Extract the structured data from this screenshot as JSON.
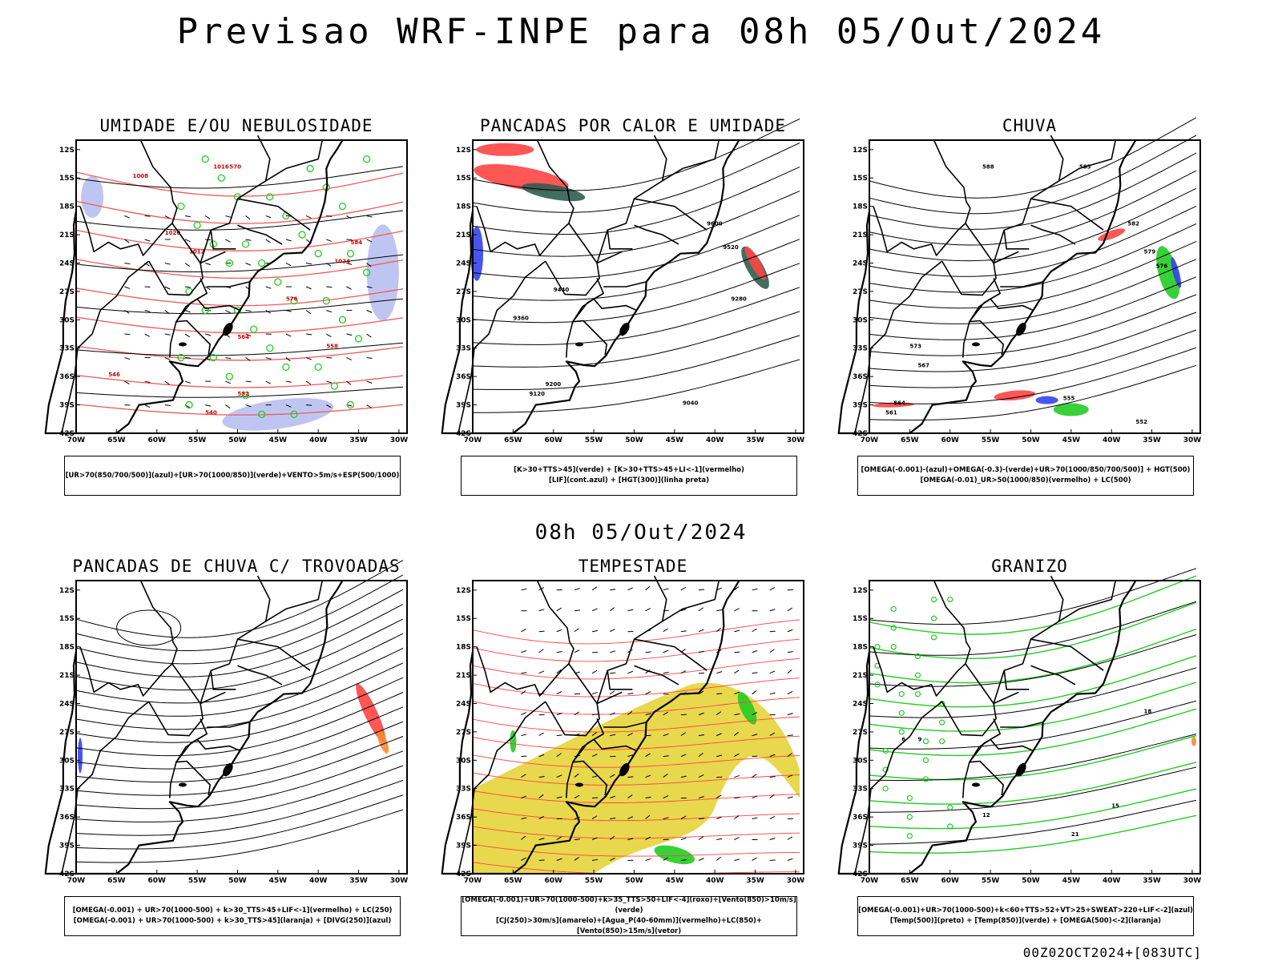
{
  "header": {
    "title": "Previsao WRF-INPE  para 08h 05/Out/2024"
  },
  "mid_header": {
    "subtitle": "08h 05/Out/2024"
  },
  "footer": {
    "run_id": "00Z02OCT2024+[083UTC]"
  },
  "axes": {
    "lat_labels": [
      "12S",
      "15S",
      "18S",
      "21S",
      "24S",
      "27S",
      "30S",
      "33S",
      "36S",
      "39S",
      "42S"
    ],
    "lon_labels": [
      "70W",
      "65W",
      "60W",
      "55W",
      "50W",
      "45W",
      "40W",
      "35W",
      "30W"
    ]
  },
  "colors": {
    "blue": "#3344ee",
    "green": "#22cc22",
    "red": "#ff4444",
    "orange": "#ff8833",
    "yellow": "#e6d43a",
    "darkgreen": "#2e5e50",
    "lavender": "#b8bff0",
    "salmon": "#f05a5a"
  },
  "panels": [
    {
      "title": "UMIDADE E/OU NEBULOSIDADE",
      "legend": [
        "[UR>70(850/700/500)](azul)+[UR>70(1000/850)](verde)+VENTO>5m/s+ESP(500/1000)"
      ],
      "contour_labels": [
        "1008",
        "1012",
        "1016",
        "1020",
        "1024",
        "570",
        "576",
        "564",
        "558",
        "552",
        "546",
        "540",
        "584"
      ]
    },
    {
      "title": "PANCADAS POR CALOR E UMIDADE",
      "legend": [
        "[K>30+TTS>45](verde) + [K>30+TTS>45+LI<-1](vermelho)",
        "[LIF](cont.azul) + [HGT(300)](linha preta)"
      ],
      "contour_labels": [
        "9600",
        "9520",
        "9440",
        "9360",
        "9280",
        "9200",
        "9120",
        "9040"
      ]
    },
    {
      "title": "CHUVA",
      "legend": [
        "[OMEGA(-0.001)-(azul)+OMEGA(-0.3)-(verde)+UR>70(1000/850/700/500)] + HGT(500)",
        "[OMEGA(-0.01)_UR>50(1000/850)(vermelho) + LC(500)"
      ],
      "contour_labels": [
        "588",
        "585",
        "582",
        "579",
        "576",
        "573",
        "567",
        "564",
        "561",
        "555",
        "552"
      ]
    },
    {
      "title": "PANCADAS DE CHUVA C/ TROVOADAS",
      "legend": [
        "[OMEGA(-0.001) + UR>70(1000-500) + k>30_TTS>45+LIF<-1](vermelho) + LC(250)",
        "[OMEGA(-0.001) + UR>70(1000-500) + k>30_TTS>45](laranja) + [DIVG(250)](azul)"
      ],
      "contour_labels": []
    },
    {
      "title": "TEMPESTADE",
      "legend": [
        "[OMEGA(-0.001)+UR>70(1000-500)+k>35_TTS>50+LIF<-4](roxo)+[Vento(850)>10m/s](verde)",
        "[CJ(250)>30m/s](amarelo)+[Agua_P(40-60mm)](vermelho)+LC(850)+[Vento(850)>15m/s](vetor)"
      ],
      "contour_labels": []
    },
    {
      "title": "GRANIZO",
      "legend": [
        "[OMEGA(-0.001)+UR>70(1000-500)+k<60+TTS>52+VT>25+SWEAT>220+LIF<-2](azul)",
        "[Temp(500)](preto) + [Temp(850)](verde) + [OMEGA(500)<-2](laranja)"
      ],
      "contour_labels": [
        "12",
        "15",
        "18",
        "21",
        "9",
        "6"
      ]
    }
  ]
}
